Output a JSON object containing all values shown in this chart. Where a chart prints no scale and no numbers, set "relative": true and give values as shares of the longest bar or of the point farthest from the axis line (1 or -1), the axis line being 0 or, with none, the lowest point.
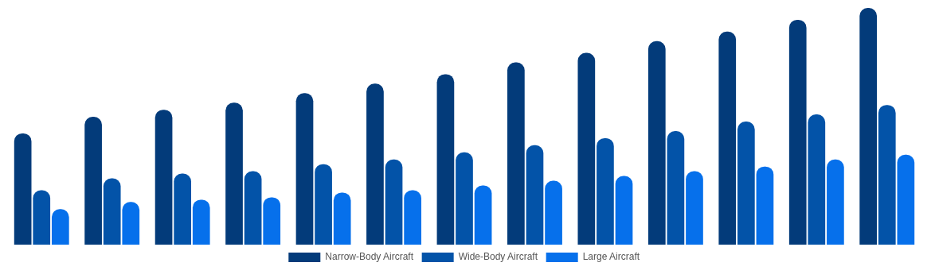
{
  "chart_data": {
    "type": "bar",
    "relative": true,
    "categories": [
      null,
      null,
      null,
      null,
      null,
      null,
      null,
      null,
      null,
      null,
      null,
      null,
      null
    ],
    "legend": "bottom",
    "series": [
      {
        "name": "Narrow-Body Aircraft",
        "color": "#033b7a",
        "values": [
          0.47,
          0.54,
          0.57,
          0.6,
          0.64,
          0.68,
          0.72,
          0.77,
          0.81,
          0.86,
          0.9,
          0.95,
          1
        ]
      },
      {
        "name": "Wide-Body Aircraft",
        "color": "#0353a8",
        "values": [
          0.23,
          0.28,
          0.3,
          0.31,
          0.34,
          0.36,
          0.39,
          0.42,
          0.45,
          0.48,
          0.52,
          0.55,
          0.59
        ]
      },
      {
        "name": "Large Aircraft",
        "color": "#0670eb",
        "values": [
          0.15,
          0.18,
          0.19,
          0.2,
          0.22,
          0.23,
          0.25,
          0.27,
          0.29,
          0.31,
          0.33,
          0.36,
          0.38
        ]
      }
    ]
  }
}
